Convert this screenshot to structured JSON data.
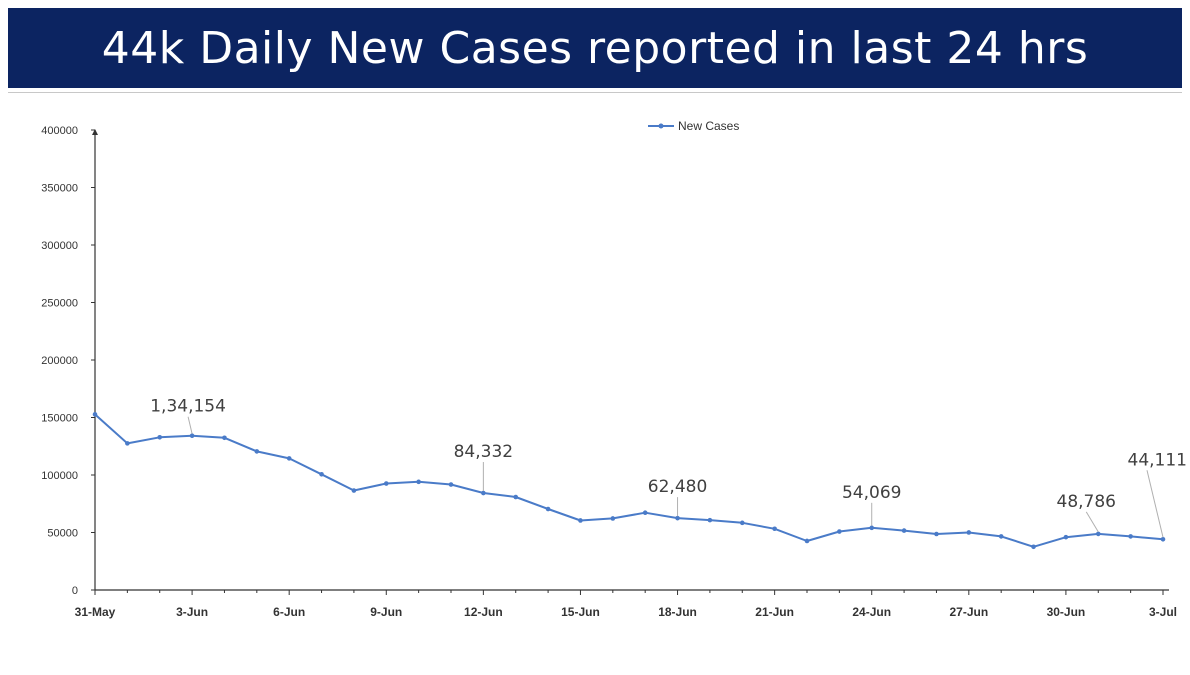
{
  "header": {
    "title": "44k Daily New Cases reported in last 24 hrs"
  },
  "colors": {
    "banner": "#0c2461",
    "series": "#4a7bc8",
    "axis": "#333333"
  },
  "chart_data": {
    "type": "line",
    "title": "44k Daily New Cases reported in last 24 hrs",
    "xlabel": "",
    "ylabel": "",
    "legend": {
      "position": "top-center",
      "entries": [
        "New Cases"
      ]
    },
    "grid": false,
    "ylim": [
      0,
      400000
    ],
    "y_ticks": [
      0,
      50000,
      100000,
      150000,
      200000,
      250000,
      300000,
      350000,
      400000
    ],
    "y_tick_labels": [
      "0",
      "50000",
      "100000",
      "150000",
      "200000",
      "250000",
      "300000",
      "350000",
      "400000"
    ],
    "x": [
      "31-May",
      "1-Jun",
      "2-Jun",
      "3-Jun",
      "4-Jun",
      "5-Jun",
      "6-Jun",
      "7-Jun",
      "8-Jun",
      "9-Jun",
      "10-Jun",
      "11-Jun",
      "12-Jun",
      "13-Jun",
      "14-Jun",
      "15-Jun",
      "16-Jun",
      "17-Jun",
      "18-Jun",
      "19-Jun",
      "20-Jun",
      "21-Jun",
      "22-Jun",
      "23-Jun",
      "24-Jun",
      "25-Jun",
      "26-Jun",
      "27-Jun",
      "28-Jun",
      "29-Jun",
      "30-Jun",
      "1-Jul",
      "2-Jul",
      "3-Jul"
    ],
    "x_tick_labels": [
      "31-May",
      "3-Jun",
      "6-Jun",
      "9-Jun",
      "12-Jun",
      "15-Jun",
      "18-Jun",
      "21-Jun",
      "24-Jun",
      "27-Jun",
      "30-Jun",
      "3-Jul"
    ],
    "x_tick_every": 3,
    "series": [
      {
        "name": "New Cases",
        "values": [
          152734,
          127510,
          132788,
          134154,
          132364,
          120529,
          114460,
          100636,
          86498,
          92596,
          94052,
          91702,
          84332,
          80834,
          70421,
          60471,
          62224,
          67208,
          62480,
          60753,
          58419,
          53256,
          42640,
          50848,
          54069,
          51667,
          48698,
          50040,
          46617,
          37566,
          45951,
          48786,
          46617,
          44111
        ]
      }
    ],
    "data_labels": [
      {
        "index": 3,
        "text": "1,34,154"
      },
      {
        "index": 12,
        "text": "84,332"
      },
      {
        "index": 18,
        "text": "62,480"
      },
      {
        "index": 24,
        "text": "54,069"
      },
      {
        "index": 31,
        "text": "48,786"
      },
      {
        "index": 33,
        "text": "44,111"
      }
    ]
  }
}
